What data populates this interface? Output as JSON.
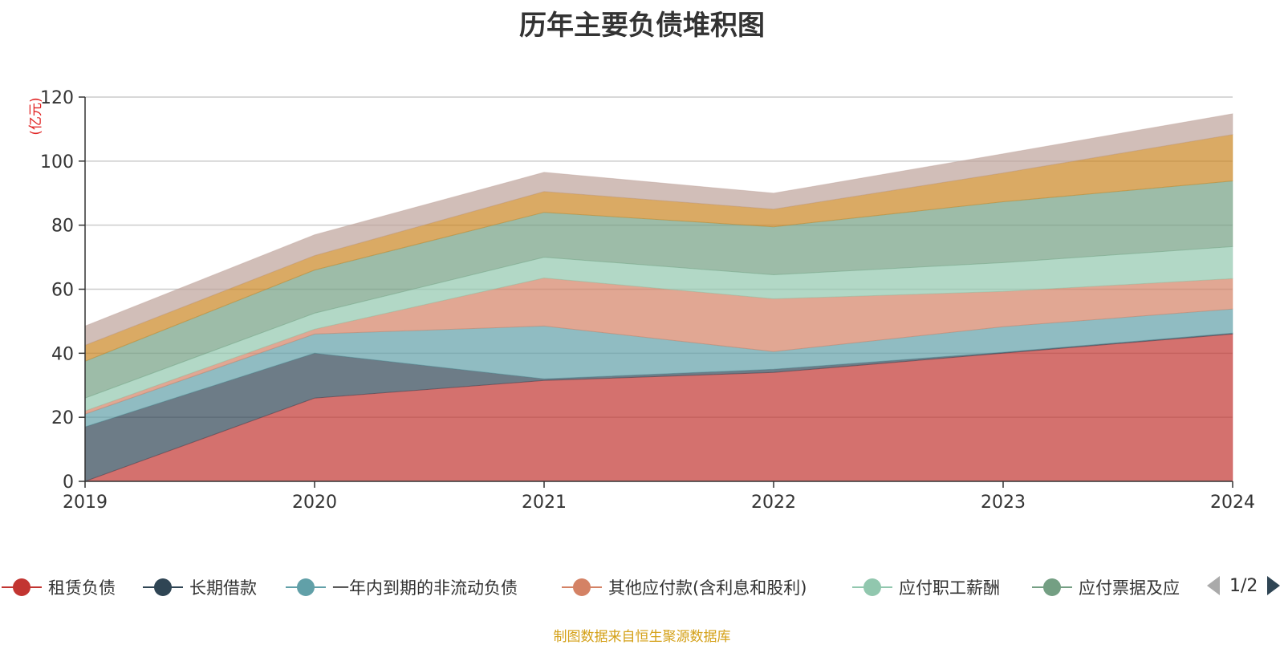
{
  "chart_data": {
    "type": "area",
    "stacked": true,
    "title": "历年主要负债堆积图",
    "ylabel": "(亿元)",
    "xlabel": "",
    "categories": [
      "2019",
      "2020",
      "2021",
      "2022",
      "2023",
      "2024"
    ],
    "ylim": [
      0,
      120
    ],
    "yticks": [
      0,
      20,
      40,
      60,
      80,
      100,
      120
    ],
    "grid": true,
    "legend_position": "bottom",
    "series": [
      {
        "name": "租赁负债",
        "color": "#c23531",
        "values": [
          0,
          26,
          31.5,
          34,
          40,
          46
        ]
      },
      {
        "name": "长期借款",
        "color": "#2f4554",
        "values": [
          17,
          14,
          0.5,
          1,
          0.3,
          0.3
        ]
      },
      {
        "name": "一年内到期的非流动负债",
        "color": "#61a0a8",
        "values": [
          4,
          6,
          16.5,
          5.5,
          8,
          7.5
        ]
      },
      {
        "name": "其他应付款(含利息和股利)",
        "color": "#d48265",
        "values": [
          1,
          1.5,
          15,
          16.5,
          11,
          9.5
        ]
      },
      {
        "name": "应付职工薪酬",
        "color": "#91c7ae",
        "values": [
          4,
          5,
          6.5,
          7.5,
          9,
          10
        ]
      },
      {
        "name": "应付票据及应付账款",
        "color": "#749f83",
        "values": [
          11.5,
          13.5,
          14,
          15,
          19,
          20.5
        ]
      },
      {
        "name": "",
        "color": "#ca8622",
        "values": [
          5,
          4.5,
          6.5,
          5.5,
          9,
          14.5
        ]
      },
      {
        "name": "",
        "color": "#bda29a",
        "values": [
          6,
          6.5,
          6,
          5,
          6,
          6.5
        ]
      }
    ]
  },
  "legend": {
    "items": [
      {
        "label": "租赁负债",
        "color": "#c23531"
      },
      {
        "label": "长期借款",
        "color": "#2f4554"
      },
      {
        "label": "一年内到期的非流动负债",
        "color": "#61a0a8"
      },
      {
        "label": "其他应付款(含利息和股利)",
        "color": "#d48265"
      },
      {
        "label": "应付职工薪酬",
        "color": "#91c7ae"
      },
      {
        "label": "应付票据及应",
        "color": "#749f83"
      }
    ],
    "pager": "1/2",
    "prev_icon": "triangle-left-icon",
    "next_icon": "triangle-right-icon",
    "pager_active_color": "#2f4554",
    "pager_inactive_color": "#aaaaaa"
  },
  "source_note": "制图数据来自恒生聚源数据库"
}
